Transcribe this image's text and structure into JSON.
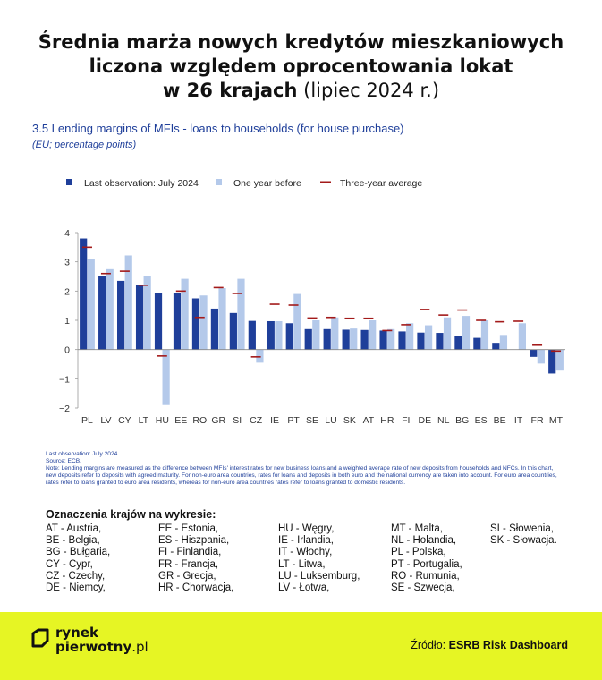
{
  "header": {
    "title_line1": "Średnia marża nowych kredytów mieszkaniowych",
    "title_line2": "liczona względem oprocentowania lokat",
    "title_line3_bold": "w 26 krajach",
    "title_line3_paren": "(lipiec 2024 r.)"
  },
  "chart_title": "3.5 Lending margins of MFIs - loans to households (for house purchase)",
  "chart_subtitle": "(EU; percentage points)",
  "colors": {
    "last": "#1f3f9a",
    "year_before": "#b4c9ea",
    "avg": "#a31a1a",
    "footer": "#e6f524"
  },
  "chart_data": {
    "type": "bar",
    "categories": [
      "PL",
      "LV",
      "CY",
      "LT",
      "HU",
      "EE",
      "RO",
      "GR",
      "SI",
      "CZ",
      "IE",
      "PT",
      "SE",
      "LU",
      "SK",
      "AT",
      "HR",
      "FI",
      "DE",
      "NL",
      "BG",
      "ES",
      "BE",
      "IT",
      "FR",
      "MT"
    ],
    "series": [
      {
        "name": "Last observation: July 2024",
        "values": [
          3.8,
          2.5,
          2.35,
          2.2,
          1.92,
          1.92,
          1.75,
          1.4,
          1.25,
          0.98,
          0.97,
          0.9,
          0.7,
          0.7,
          0.68,
          0.67,
          0.65,
          0.62,
          0.58,
          0.57,
          0.45,
          0.4,
          0.23,
          0.0,
          -0.25,
          -0.82
        ]
      },
      {
        "name": "One year before",
        "values": [
          3.1,
          2.75,
          3.22,
          2.5,
          -1.9,
          2.42,
          1.85,
          2.1,
          2.42,
          -0.45,
          0.97,
          1.9,
          1.0,
          1.1,
          0.72,
          1.0,
          0.7,
          0.9,
          0.83,
          1.1,
          1.15,
          1.0,
          0.5,
          0.9,
          -0.48,
          -0.72
        ]
      },
      {
        "name": "Three-year average",
        "values": [
          3.5,
          2.6,
          2.68,
          2.2,
          -0.22,
          2.0,
          1.1,
          2.12,
          1.92,
          -0.25,
          1.55,
          1.52,
          1.08,
          1.1,
          1.07,
          1.07,
          0.65,
          0.85,
          1.37,
          1.18,
          1.35,
          1.0,
          0.95,
          0.97,
          0.15,
          -0.05
        ]
      }
    ],
    "ylim": [
      -2,
      4
    ],
    "yticks": [
      "4",
      "3",
      "2",
      "1",
      "0",
      "−1",
      "−2"
    ],
    "legend_position": "top",
    "grid": false
  },
  "notes": {
    "line1": "Last observation: July 2024",
    "line2": "Source: ECB.",
    "line3": "Note: Lending margins are measured as the difference between MFIs' interest rates for new business loans and a weighted average rate of new deposits from households and NFCs. In this chart, new deposits refer to deposits with agreed maturity. For non-euro area countries, rates for loans and deposits in both euro and the national currency are taken into account. For euro area countries, rates refer to loans granted to euro area residents, whereas for non-euro area countries rates refer to loans granted to domestic residents."
  },
  "country_legend": {
    "title": "Oznaczenia krajów na wykresie:",
    "col1": [
      "AT - Austria,",
      "BE - Belgia,",
      "BG - Bułgaria,",
      "CY - Cypr,",
      "CZ - Czechy,",
      "DE - Niemcy,"
    ],
    "col2": [
      "EE - Estonia,",
      "ES - Hiszpania,",
      "FI - Finlandia,",
      "FR - Francja,",
      "GR - Grecja,",
      "HR - Chorwacja,"
    ],
    "col3": [
      "HU - Węgry,",
      "IE - Irlandia,",
      "IT - Włochy,",
      "LT - Litwa,",
      "LU - Luksemburg,",
      "LV - Łotwa,"
    ],
    "col4": [
      "MT - Malta,",
      "NL - Holandia,",
      "PL - Polska,",
      "PT - Portugalia,",
      "RO - Rumunia,",
      "SE - Szwecja,"
    ],
    "col5": [
      "SI - Słowenia,",
      "SK - Słowacja."
    ]
  },
  "footer": {
    "logo_line1": "rynek",
    "logo_line2": "pierwotny",
    "logo_suffix": ".pl",
    "source_label": "Źródło:",
    "source_value": "ESRB Risk Dashboard"
  }
}
